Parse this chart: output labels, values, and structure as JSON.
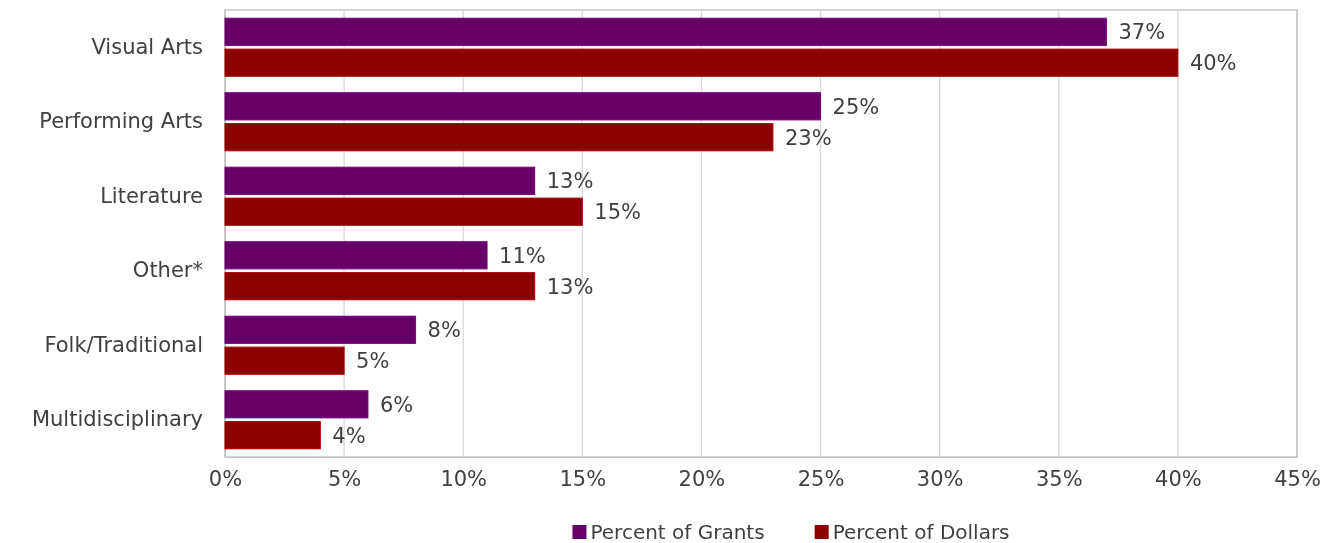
{
  "chart_data": {
    "type": "bar",
    "orientation": "horizontal",
    "categories": [
      "Visual Arts",
      "Performing Arts",
      "Literature",
      "Other*",
      "Folk/Traditional",
      "Multidisciplinary"
    ],
    "series": [
      {
        "name": "Percent of Grants",
        "color": "#660066",
        "values": [
          37,
          25,
          13,
          11,
          8,
          6
        ],
        "value_labels": [
          "37%",
          "25%",
          "13%",
          "11%",
          "8%",
          "6%"
        ]
      },
      {
        "name": "Percent of Dollars",
        "color": "#8b0000",
        "values": [
          40,
          23,
          15,
          13,
          5,
          4
        ],
        "value_labels": [
          "40%",
          "23%",
          "15%",
          "13%",
          "5%",
          "4%"
        ]
      }
    ],
    "xlim": [
      0,
      45
    ],
    "xticks": [
      {
        "value": 0,
        "label": "0%"
      },
      {
        "value": 5,
        "label": "5%"
      },
      {
        "value": 10,
        "label": "10%"
      },
      {
        "value": 15,
        "label": "15%"
      },
      {
        "value": 20,
        "label": "20%"
      },
      {
        "value": 25,
        "label": "25%"
      },
      {
        "value": 30,
        "label": "30%"
      },
      {
        "value": 35,
        "label": "35%"
      },
      {
        "value": 40,
        "label": "40%"
      },
      {
        "value": 45,
        "label": "45%"
      }
    ],
    "grid": "x",
    "legend": "bottom"
  }
}
